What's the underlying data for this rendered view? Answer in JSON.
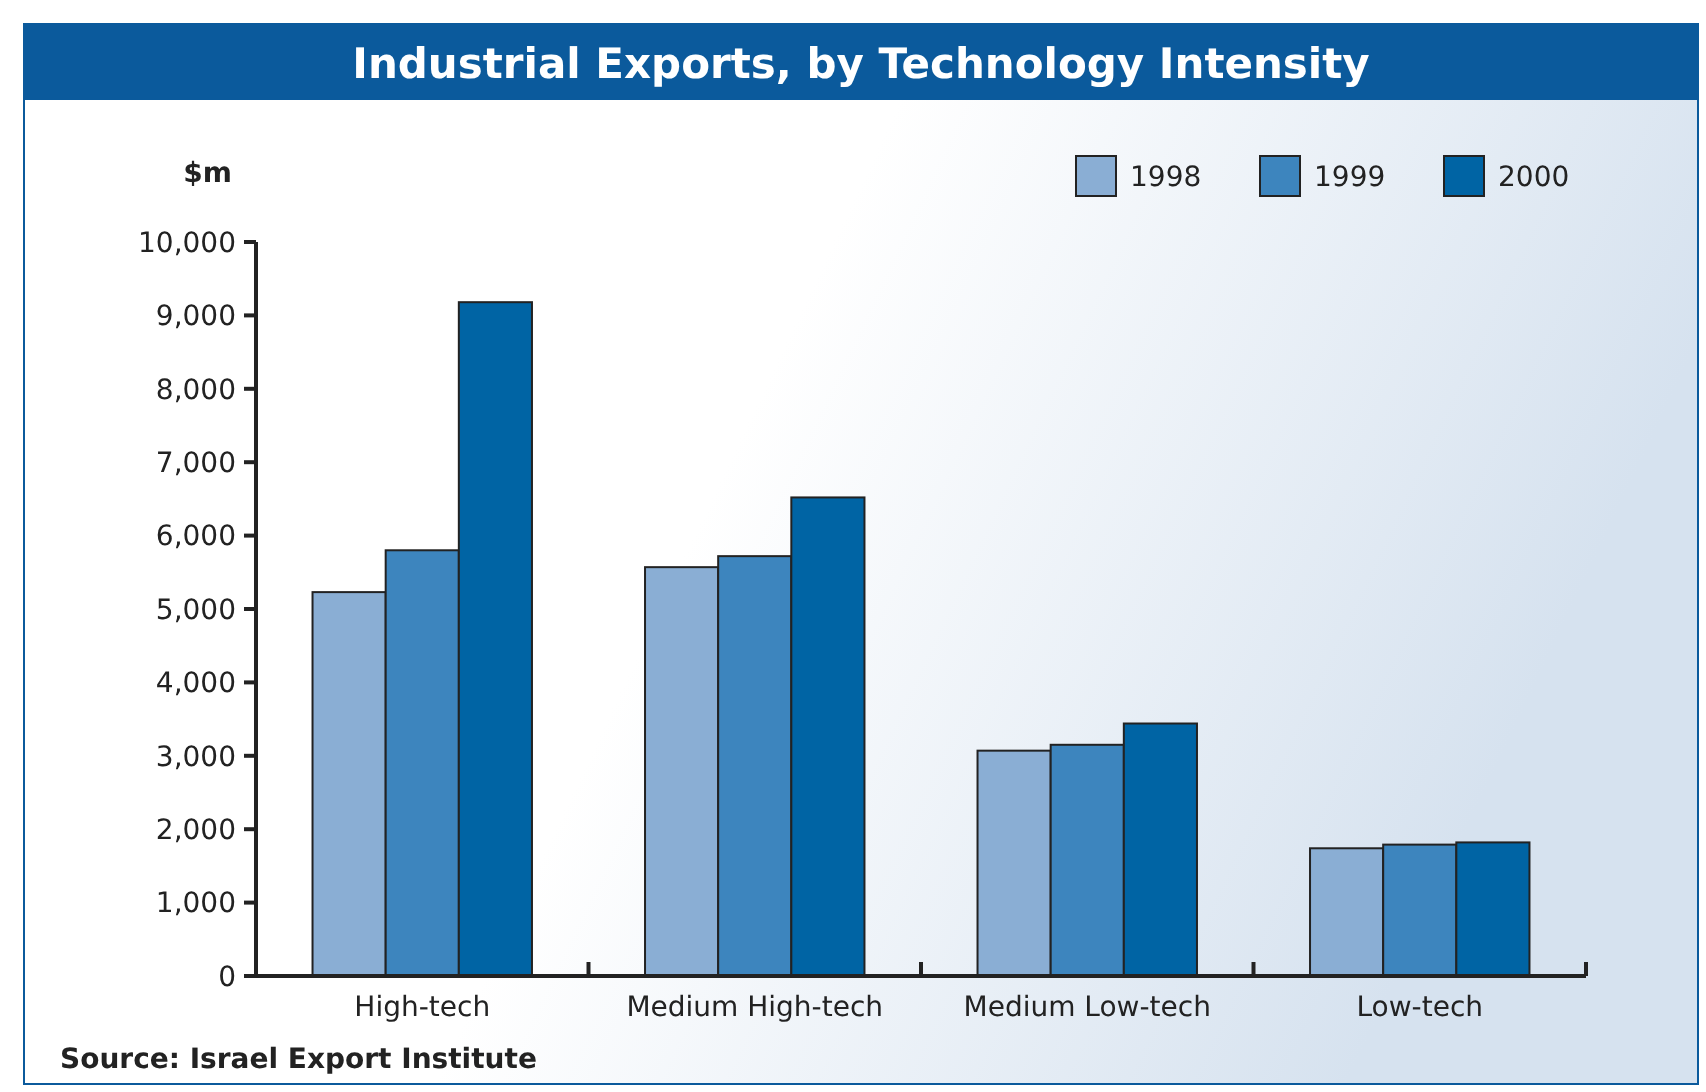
{
  "chart_data": {
    "type": "bar",
    "title": "Industrial Exports, by Technology Intensity",
    "ylabel": "$m",
    "categories": [
      "High-tech",
      "Medium High-tech",
      "Medium Low-tech",
      "Low-tech"
    ],
    "series": [
      {
        "name": "1998",
        "color": "#8aaed4",
        "values": [
          5230,
          5570,
          3070,
          1740
        ]
      },
      {
        "name": "1999",
        "color": "#3d85be",
        "values": [
          5800,
          5720,
          3150,
          1790
        ]
      },
      {
        "name": "2000",
        "color": "#0064a4",
        "values": [
          9180,
          6520,
          3440,
          1820
        ]
      }
    ],
    "ylim": [
      0,
      10000
    ],
    "yticks": [
      {
        "value": 0,
        "label": "0"
      },
      {
        "value": 1000,
        "label": "1,000"
      },
      {
        "value": 2000,
        "label": "2,000"
      },
      {
        "value": 3000,
        "label": "3,000"
      },
      {
        "value": 4000,
        "label": "4,000"
      },
      {
        "value": 5000,
        "label": "5,000"
      },
      {
        "value": 6000,
        "label": "6,000"
      },
      {
        "value": 7000,
        "label": "7,000"
      },
      {
        "value": 8000,
        "label": "8,000"
      },
      {
        "value": 9000,
        "label": "9,000"
      },
      {
        "value": 10000,
        "label": "10,000"
      }
    ],
    "grid": false,
    "legend": "top right",
    "annotations": [
      "Source: Israel Export Institute"
    ]
  }
}
